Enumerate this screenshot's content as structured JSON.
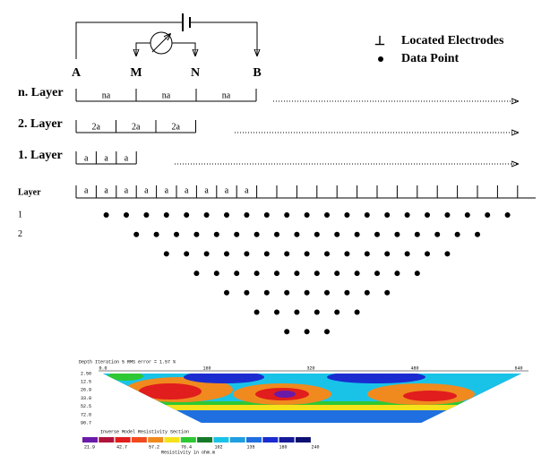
{
  "electrodes": {
    "labels": [
      "A",
      "M",
      "N",
      "B"
    ]
  },
  "legend": {
    "items": [
      "Located Electrodes",
      "Data Point"
    ]
  },
  "layers": [
    {
      "label": "n. Layer",
      "spacings": [
        "na",
        "na",
        "na"
      ]
    },
    {
      "label": "2. Layer",
      "spacings": [
        "2a",
        "2a",
        "2a"
      ]
    },
    {
      "label": "1. Layer",
      "spacings": [
        "a",
        "a",
        "a"
      ]
    }
  ],
  "pseudosection": {
    "label": "Layer",
    "spacings": [
      "a",
      "a",
      "a",
      "a",
      "a",
      "a",
      "a",
      "a",
      "a"
    ],
    "rows": [
      {
        "label": "1",
        "points": 21
      },
      {
        "label": "2",
        "points": 18
      },
      {
        "label": null,
        "points": 15
      },
      {
        "label": null,
        "points": 12
      },
      {
        "label": null,
        "points": 9
      },
      {
        "label": null,
        "points": 6
      },
      {
        "label": null,
        "points": 3
      }
    ]
  },
  "model": {
    "header": "Depth    Iteration 5 RMS error = 1.57 %",
    "xticks": [
      "0.0",
      "160",
      "320",
      "480",
      "640"
    ],
    "depths": [
      "2.50",
      "12.5",
      "26.9",
      "33.8",
      "52.5",
      "72.0",
      "90.7"
    ],
    "title": "Inverse Model Resistivity Section",
    "scale": [
      "21.9",
      "42.7",
      "57.2",
      "76.4",
      "102",
      "135",
      "180",
      "240"
    ],
    "unit": "Resistivity in ohm.m"
  }
}
